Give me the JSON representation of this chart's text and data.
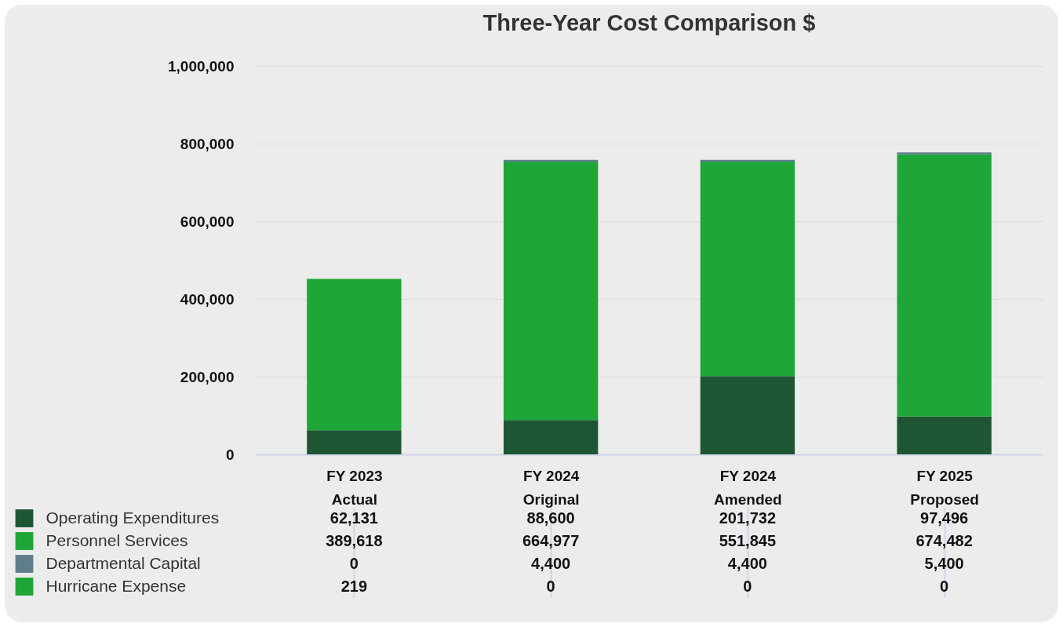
{
  "chart_data": {
    "type": "bar",
    "title": "Three-Year Cost Comparison $",
    "stacked": true,
    "categories": [
      "FY 2023 Actual",
      "FY 2024 Original",
      "FY 2024 Amended",
      "FY 2025 Proposed"
    ],
    "series": [
      {
        "name": "Operating Expenditures",
        "color": "#1e5634",
        "values": [
          62131,
          88600,
          201732,
          97496
        ],
        "value_labels": [
          "62,131",
          "88,600",
          "201,732",
          "97,496"
        ]
      },
      {
        "name": "Personnel Services",
        "color": "#1ea639",
        "values": [
          389618,
          664977,
          551845,
          674482
        ],
        "value_labels": [
          "389,618",
          "664,977",
          "551,845",
          "674,482"
        ]
      },
      {
        "name": "Departmental Capital",
        "color": "#607d8b",
        "values": [
          0,
          4400,
          4400,
          5400
        ],
        "value_labels": [
          "0",
          "4,400",
          "4,400",
          "5,400"
        ]
      },
      {
        "name": "Hurricane Expense",
        "color": "#1ea639",
        "values": [
          219,
          0,
          0,
          0
        ],
        "value_labels": [
          "219",
          "0",
          "0",
          "0"
        ]
      }
    ],
    "ylim": [
      0,
      1000000
    ],
    "yticks": [
      {
        "value": 0,
        "label": "0"
      },
      {
        "value": 200000,
        "label": "200,000"
      },
      {
        "value": 400000,
        "label": "400,000"
      },
      {
        "value": 600000,
        "label": "600,000"
      },
      {
        "value": 800000,
        "label": "800,000"
      },
      {
        "value": 1000000,
        "label": "1,000,000"
      }
    ],
    "grid": "y",
    "legend": "bottom left"
  }
}
